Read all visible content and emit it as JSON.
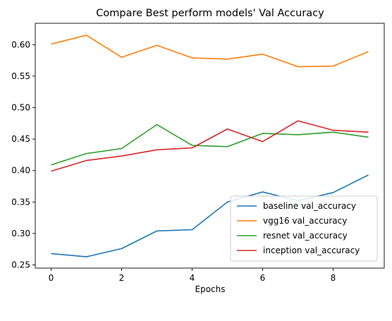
{
  "chart_data": {
    "type": "line",
    "title": "Compare Best perform models' Val Accuracy",
    "xlabel": "Epochs",
    "ylabel": "",
    "x": [
      0,
      1,
      2,
      3,
      4,
      5,
      6,
      7,
      8,
      9
    ],
    "xticks": [
      0,
      2,
      4,
      6,
      8
    ],
    "yticks": [
      0.25,
      0.3,
      0.35,
      0.4,
      0.45,
      0.5,
      0.55,
      0.6
    ],
    "xlim": [
      -0.45,
      9.45
    ],
    "ylim": [
      0.245,
      0.634
    ],
    "grid": false,
    "legend_position": "lower-right",
    "series": [
      {
        "name": "baseline val_accuracy",
        "color": "#1f77b4",
        "values": [
          0.268,
          0.263,
          0.276,
          0.304,
          0.306,
          0.35,
          0.366,
          0.352,
          0.365,
          0.393
        ]
      },
      {
        "name": "vgg16 val_accuracy",
        "color": "#ff7f0e",
        "values": [
          0.601,
          0.615,
          0.58,
          0.599,
          0.579,
          0.577,
          0.585,
          0.565,
          0.566,
          0.589
        ]
      },
      {
        "name": "resnet val_accuracy",
        "color": "#2ca02c",
        "values": [
          0.409,
          0.427,
          0.435,
          0.473,
          0.44,
          0.438,
          0.459,
          0.457,
          0.461,
          0.453
        ]
      },
      {
        "name": "inception val_accuracy",
        "color": "#d62728",
        "values": [
          0.399,
          0.416,
          0.423,
          0.433,
          0.436,
          0.466,
          0.446,
          0.479,
          0.464,
          0.461
        ]
      }
    ]
  }
}
